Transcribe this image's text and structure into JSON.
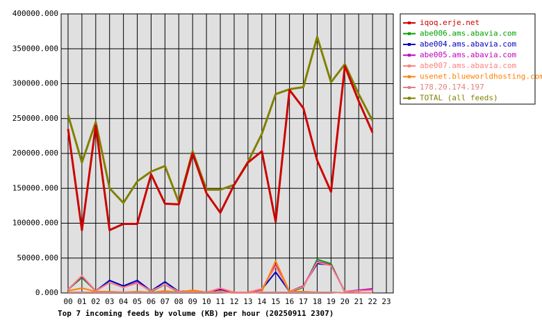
{
  "chart_data": {
    "type": "line",
    "title": "Top 7 incoming feeds by volume (KB) per hour (20250911 2307)",
    "categories": [
      "00",
      "01",
      "02",
      "03",
      "04",
      "05",
      "06",
      "07",
      "08",
      "09",
      "10",
      "11",
      "12",
      "13",
      "14",
      "15",
      "16",
      "17",
      "18",
      "19",
      "20",
      "21",
      "22",
      "23"
    ],
    "ylim": [
      0,
      400000
    ],
    "yticks": [
      {
        "value": 0,
        "label": "0.000"
      },
      {
        "value": 50000,
        "label": "50000.000"
      },
      {
        "value": 100000,
        "label": "100000.000"
      },
      {
        "value": 150000,
        "label": "150000.000"
      },
      {
        "value": 200000,
        "label": "200000.000"
      },
      {
        "value": 250000,
        "label": "250000.000"
      },
      {
        "value": 300000,
        "label": "300000.000"
      },
      {
        "value": 350000,
        "label": "350000.000"
      },
      {
        "value": 400000,
        "label": "400000.000"
      }
    ],
    "grid": true,
    "legend": "right",
    "series": [
      {
        "name": "iqoq.erje.net",
        "color": "#cc0000",
        "values": [
          235000,
          90000,
          240000,
          90000,
          99000,
          99000,
          170000,
          128000,
          127000,
          200000,
          143000,
          115000,
          155000,
          187000,
          203000,
          102000,
          291000,
          265000,
          190000,
          145000,
          325000,
          275000,
          230000,
          null
        ]
      },
      {
        "name": "abe006.ams.abavia.com",
        "color": "#00a000",
        "values": [
          5000,
          22000,
          3000,
          15000,
          8000,
          15000,
          2000,
          12000,
          1000,
          2000,
          1000,
          6000,
          1000,
          1000,
          5000,
          40000,
          1000,
          8000,
          48000,
          42000,
          1000,
          3000,
          5000,
          null
        ]
      },
      {
        "name": "abe004.ams.abavia.com",
        "color": "#0000c0",
        "values": [
          5000,
          24000,
          3000,
          18000,
          10000,
          18000,
          3000,
          16000,
          2000,
          3000,
          1000,
          5000,
          1000,
          1000,
          5000,
          30000,
          2000,
          10000,
          42000,
          40000,
          2000,
          3000,
          5000,
          null
        ]
      },
      {
        "name": "abe005.ams.abavia.com",
        "color": "#c000c0",
        "values": [
          5000,
          24000,
          3000,
          15000,
          8000,
          15000,
          3000,
          12000,
          2000,
          2000,
          1000,
          6000,
          1000,
          1000,
          5000,
          40000,
          2000,
          10000,
          45000,
          40000,
          2000,
          4000,
          6000,
          null
        ]
      },
      {
        "name": "abe007.ams.abavia.com",
        "color": "#ff8080",
        "values": [
          5000,
          25000,
          3000,
          15000,
          8000,
          14000,
          3000,
          12000,
          2000,
          2000,
          1000,
          7000,
          1000,
          1000,
          6000,
          38000,
          2000,
          9000,
          44000,
          39000,
          2000,
          3000,
          4000,
          null
        ]
      },
      {
        "name": "usenet.blueworldhosting.com",
        "color": "#ff8000",
        "values": [
          3000,
          7000,
          2000,
          2000,
          1000,
          2000,
          1000,
          3000,
          1000,
          4000,
          1000,
          2000,
          0,
          0,
          2000,
          46000,
          2000,
          2000,
          1000,
          1000,
          0,
          0,
          0,
          null
        ]
      },
      {
        "name": "178.20.174.197",
        "color": "#e08080",
        "values": [
          1000,
          1000,
          1000,
          1000,
          1000,
          1000,
          1000,
          1000,
          1000,
          1000,
          1000,
          1000,
          0,
          0,
          1000,
          1000,
          1000,
          1000,
          1000,
          1000,
          0,
          0,
          0,
          null
        ]
      },
      {
        "name": "TOTAL (all feeds)",
        "color": "#808000",
        "values": [
          255000,
          187000,
          245000,
          150000,
          129000,
          160000,
          174000,
          182000,
          130000,
          203000,
          148000,
          148000,
          155000,
          188000,
          228000,
          285000,
          292000,
          295000,
          367000,
          302000,
          328000,
          285000,
          247000,
          null
        ]
      }
    ]
  }
}
